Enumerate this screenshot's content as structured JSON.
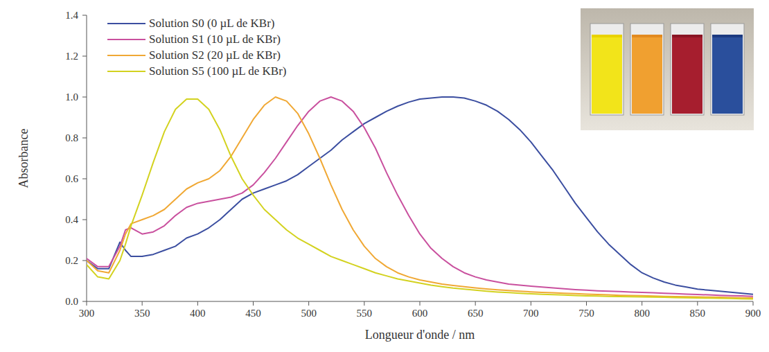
{
  "chart_data": {
    "type": "line",
    "x_label": "Longueur d'onde / nm",
    "y_label": "Absorbance",
    "legend": "top-left",
    "grid": false,
    "xlim": [
      300,
      900
    ],
    "ylim": [
      0,
      1.4
    ],
    "xticks": [
      300,
      350,
      400,
      450,
      500,
      550,
      600,
      650,
      700,
      750,
      800,
      850,
      900
    ],
    "yticks": [
      {
        "value": 0,
        "label": "0.0"
      },
      {
        "value": 0.2,
        "label": "0.2"
      },
      {
        "value": 0.4,
        "label": "0.4"
      },
      {
        "value": 0.6,
        "label": "0.6"
      },
      {
        "value": 0.8,
        "label": "0.8"
      },
      {
        "value": 1.0,
        "label": "1.0"
      },
      {
        "value": 1.2,
        "label": "1.2"
      },
      {
        "value": 1.4,
        "label": "1.4"
      }
    ],
    "x": [
      300,
      310,
      320,
      330,
      335,
      340,
      350,
      360,
      370,
      380,
      390,
      400,
      410,
      420,
      430,
      440,
      450,
      460,
      470,
      480,
      490,
      500,
      510,
      520,
      530,
      540,
      550,
      560,
      570,
      580,
      590,
      600,
      610,
      620,
      630,
      640,
      650,
      660,
      670,
      680,
      690,
      700,
      710,
      720,
      730,
      740,
      750,
      760,
      770,
      780,
      790,
      800,
      810,
      820,
      830,
      840,
      850,
      860,
      870,
      880,
      890,
      900
    ],
    "series": [
      {
        "name": "Solution S0 (0 µL de KBr)",
        "color": "#3b4ea0",
        "values": [
          0.2,
          0.16,
          0.16,
          0.29,
          0.25,
          0.22,
          0.22,
          0.23,
          0.25,
          0.27,
          0.31,
          0.33,
          0.36,
          0.4,
          0.45,
          0.5,
          0.53,
          0.55,
          0.57,
          0.59,
          0.62,
          0.66,
          0.7,
          0.74,
          0.79,
          0.83,
          0.87,
          0.9,
          0.93,
          0.955,
          0.975,
          0.99,
          0.995,
          1.0,
          1.0,
          0.995,
          0.98,
          0.96,
          0.93,
          0.89,
          0.84,
          0.78,
          0.71,
          0.64,
          0.56,
          0.48,
          0.41,
          0.34,
          0.28,
          0.23,
          0.18,
          0.14,
          0.115,
          0.095,
          0.08,
          0.07,
          0.06,
          0.055,
          0.05,
          0.045,
          0.04,
          0.035
        ]
      },
      {
        "name": "Solution S1 (10 µL de KBr)",
        "color": "#c9509e",
        "values": [
          0.21,
          0.17,
          0.17,
          0.27,
          0.35,
          0.36,
          0.33,
          0.34,
          0.37,
          0.42,
          0.46,
          0.48,
          0.49,
          0.5,
          0.51,
          0.53,
          0.57,
          0.63,
          0.7,
          0.78,
          0.86,
          0.93,
          0.98,
          1.0,
          0.98,
          0.93,
          0.85,
          0.75,
          0.63,
          0.52,
          0.42,
          0.33,
          0.26,
          0.21,
          0.17,
          0.14,
          0.12,
          0.105,
          0.095,
          0.085,
          0.08,
          0.075,
          0.07,
          0.066,
          0.062,
          0.058,
          0.055,
          0.052,
          0.05,
          0.048,
          0.046,
          0.044,
          0.042,
          0.04,
          0.038,
          0.036,
          0.034,
          0.032,
          0.03,
          0.028,
          0.027,
          0.025
        ]
      },
      {
        "name": "Solution S2 (20 µL de KBr)",
        "color": "#f0a834",
        "values": [
          0.2,
          0.15,
          0.14,
          0.25,
          0.33,
          0.38,
          0.4,
          0.42,
          0.45,
          0.5,
          0.55,
          0.58,
          0.6,
          0.64,
          0.71,
          0.8,
          0.89,
          0.96,
          1.0,
          0.98,
          0.92,
          0.82,
          0.7,
          0.57,
          0.45,
          0.35,
          0.27,
          0.21,
          0.17,
          0.14,
          0.12,
          0.105,
          0.095,
          0.085,
          0.078,
          0.072,
          0.066,
          0.061,
          0.057,
          0.053,
          0.05,
          0.047,
          0.044,
          0.042,
          0.04,
          0.038,
          0.036,
          0.034,
          0.032,
          0.03,
          0.029,
          0.028,
          0.026,
          0.025,
          0.024,
          0.023,
          0.022,
          0.021,
          0.02,
          0.019,
          0.018,
          0.017
        ]
      },
      {
        "name": "Solution S5 (100 µL de KBr)",
        "color": "#d3d21f",
        "values": [
          0.18,
          0.12,
          0.11,
          0.2,
          0.28,
          0.37,
          0.52,
          0.68,
          0.83,
          0.94,
          0.99,
          0.99,
          0.94,
          0.84,
          0.71,
          0.6,
          0.52,
          0.45,
          0.4,
          0.35,
          0.31,
          0.28,
          0.25,
          0.22,
          0.2,
          0.18,
          0.16,
          0.14,
          0.125,
          0.11,
          0.1,
          0.09,
          0.08,
          0.072,
          0.065,
          0.06,
          0.055,
          0.05,
          0.046,
          0.043,
          0.04,
          0.037,
          0.035,
          0.033,
          0.031,
          0.029,
          0.027,
          0.026,
          0.025,
          0.024,
          0.023,
          0.022,
          0.021,
          0.02,
          0.019,
          0.018,
          0.017,
          0.016,
          0.015,
          0.014,
          0.013,
          0.012
        ]
      }
    ]
  }
}
